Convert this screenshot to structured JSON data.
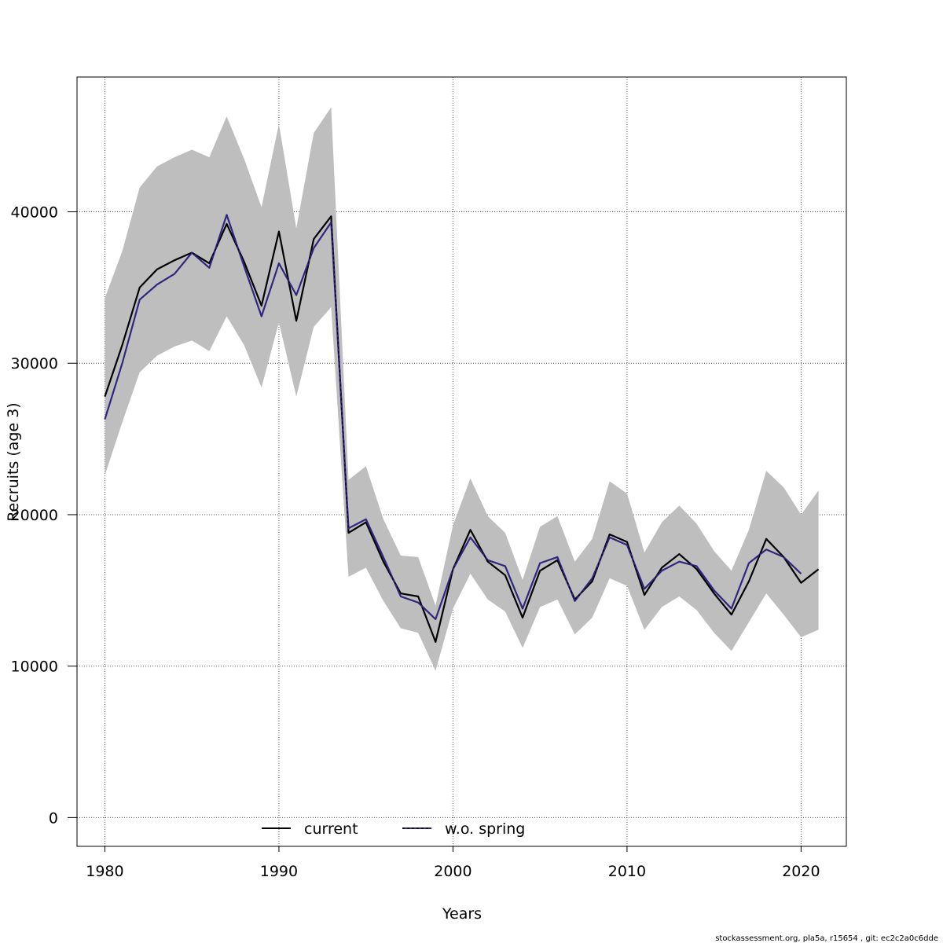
{
  "chart_data": {
    "type": "line",
    "title": "",
    "xlabel": "Years",
    "ylabel": "Recruits (age 3)",
    "xlim": [
      1978.4,
      2022.6
    ],
    "ylim": [
      -1900,
      48900
    ],
    "x_ticks": [
      1980,
      1990,
      2000,
      2010,
      2020
    ],
    "y_ticks": [
      0,
      10000,
      20000,
      30000,
      40000
    ],
    "x_tick_labels": [
      "1980",
      "1990",
      "2000",
      "2010",
      "2020"
    ],
    "y_tick_labels": [
      "0",
      "10000",
      "20000",
      "30000",
      "40000"
    ],
    "grid": true,
    "legend_position": "bottom",
    "legend": [
      "current",
      "w.o. spring"
    ],
    "band": {
      "x": [
        1980,
        1981,
        1982,
        1983,
        1984,
        1985,
        1986,
        1987,
        1988,
        1989,
        1990,
        1991,
        1992,
        1993,
        1994,
        1995,
        1996,
        1997,
        1998,
        1999,
        2000,
        2001,
        2002,
        2003,
        2004,
        2005,
        2006,
        2007,
        2008,
        2009,
        2010,
        2011,
        2012,
        2013,
        2014,
        2015,
        2016,
        2017,
        2018,
        2019,
        2020,
        2021
      ],
      "upper": [
        34300,
        37400,
        41600,
        43000,
        43600,
        44100,
        43600,
        46300,
        43500,
        40300,
        45800,
        38900,
        45200,
        46900,
        22300,
        23200,
        19700,
        17300,
        17200,
        14000,
        19300,
        22400,
        19900,
        18800,
        15700,
        19200,
        19900,
        16900,
        18400,
        22200,
        21400,
        17500,
        19500,
        20600,
        19400,
        17600,
        16300,
        19000,
        22900,
        21800,
        20000,
        21600
      ],
      "lower": [
        22600,
        26100,
        29400,
        30500,
        31100,
        31500,
        30800,
        33100,
        31200,
        28400,
        32700,
        27800,
        32400,
        33700,
        15900,
        16500,
        14300,
        12500,
        12200,
        9700,
        13800,
        16100,
        14400,
        13600,
        11200,
        13900,
        14400,
        12100,
        13200,
        15800,
        15300,
        12400,
        13900,
        14600,
        13700,
        12200,
        11000,
        12900,
        14800,
        13400,
        11900,
        12400
      ]
    },
    "series": [
      {
        "name": "current",
        "color": "#000000",
        "x": [
          1980,
          1981,
          1982,
          1983,
          1984,
          1985,
          1986,
          1987,
          1988,
          1989,
          1990,
          1991,
          1992,
          1993,
          1994,
          1995,
          1996,
          1997,
          1998,
          1999,
          2000,
          2001,
          2002,
          2003,
          2004,
          2005,
          2006,
          2007,
          2008,
          2009,
          2010,
          2011,
          2012,
          2013,
          2014,
          2015,
          2016,
          2017,
          2018,
          2019,
          2020,
          2021
        ],
        "values": [
          27800,
          31200,
          35000,
          36200,
          36800,
          37300,
          36600,
          39200,
          36700,
          33800,
          38700,
          32800,
          38200,
          39700,
          18800,
          19500,
          16900,
          14800,
          14600,
          11600,
          16400,
          19000,
          16900,
          16000,
          13200,
          16300,
          17000,
          14400,
          15600,
          18700,
          18200,
          14700,
          16500,
          17400,
          16400,
          14800,
          13400,
          15600,
          18400,
          17200,
          15500,
          16400
        ]
      },
      {
        "name": "w.o. spring",
        "color": "#2e2680",
        "x": [
          1980,
          1981,
          1982,
          1983,
          1984,
          1985,
          1986,
          1987,
          1988,
          1989,
          1990,
          1991,
          1992,
          1993,
          1994,
          1995,
          1996,
          1997,
          1998,
          1999,
          2000,
          2001,
          2002,
          2003,
          2004,
          2005,
          2006,
          2007,
          2008,
          2009,
          2010,
          2011,
          2012,
          2013,
          2014,
          2015,
          2016,
          2017,
          2018,
          2019,
          2020
        ],
        "values": [
          26300,
          30000,
          34200,
          35200,
          35900,
          37300,
          36300,
          39800,
          36400,
          33100,
          36600,
          34500,
          37600,
          39300,
          19100,
          19700,
          17200,
          14600,
          14200,
          13100,
          16400,
          18500,
          17000,
          16600,
          13800,
          16800,
          17200,
          14300,
          15800,
          18500,
          18000,
          15100,
          16300,
          16900,
          16600,
          15000,
          13800,
          16800,
          17700,
          17200,
          16100
        ]
      }
    ]
  },
  "footer": "stockassessment.org, pla5a, r15654 , git: ec2c2a0c6dde"
}
